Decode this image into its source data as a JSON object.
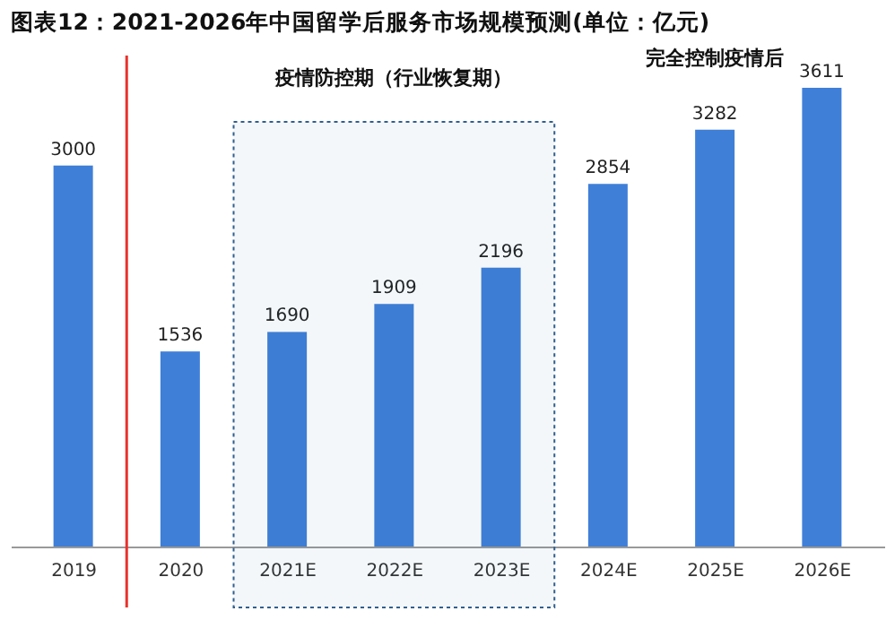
{
  "chart_data": {
    "type": "bar",
    "title": "图表12：2021-2026年中国留学后服务市场规模预测(单位：亿元)",
    "categories": [
      "2019",
      "2020",
      "2021E",
      "2022E",
      "2023E",
      "2024E",
      "2025E",
      "2026E"
    ],
    "values": [
      3000,
      1536,
      1690,
      1909,
      2196,
      2854,
      3282,
      3611
    ],
    "color": "#3f7fd8",
    "data_labels": true,
    "grid": false,
    "tick_labels": "x",
    "bands": [
      {
        "axis": "x",
        "from": "2021E",
        "to": "2023E",
        "label": "疫情防控期（行业恢复期）",
        "color": "#2f5f8f"
      }
    ],
    "ref_lines": [
      {
        "axis": "x",
        "value": "2020",
        "color": "#e8322b"
      }
    ],
    "annotations": [
      "完全控制疫情后"
    ]
  }
}
